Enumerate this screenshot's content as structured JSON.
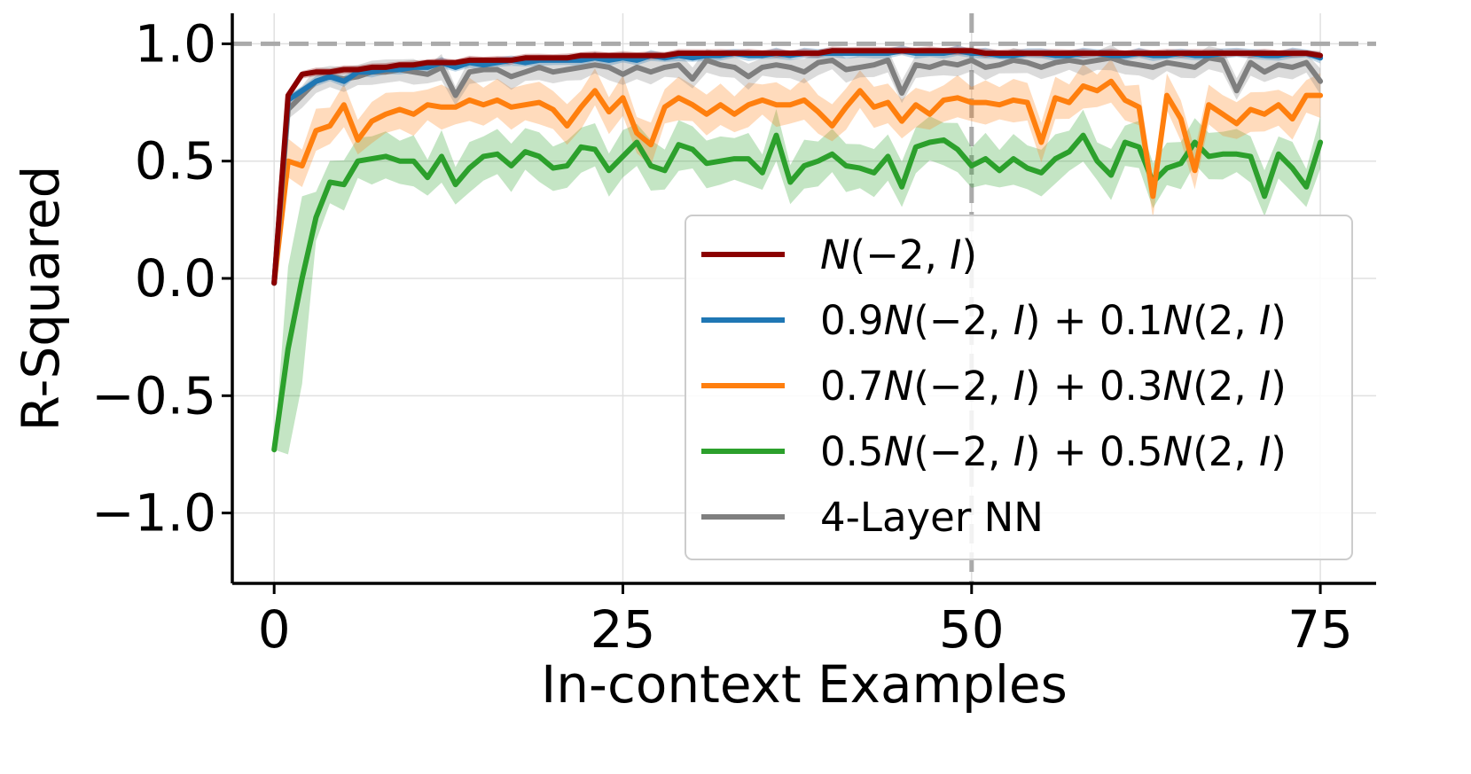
{
  "chart_data": {
    "type": "line",
    "title": "",
    "xlabel": "In-context Examples",
    "ylabel": "R-Squared",
    "xlim": [
      -3,
      79
    ],
    "ylim": [
      -1.3,
      1.13
    ],
    "xticks": [
      0,
      25,
      50,
      75
    ],
    "xtick_labels": [
      "0",
      "25",
      "50",
      "75"
    ],
    "yticks": [
      -1.0,
      -0.5,
      0.0,
      0.5,
      1.0
    ],
    "ytick_labels": [
      "−1.0",
      "−0.5",
      "0.0",
      "0.5",
      "1.0"
    ],
    "grid": true,
    "legend_position": "lower-right",
    "reference_lines": {
      "horizontal_y": 1.0,
      "vertical_x": 50,
      "color": "#aaaaaa"
    },
    "x_start": 0,
    "series": [
      {
        "name": "N(−2, I)",
        "label_parts": [
          [
            "N",
            "i"
          ],
          [
            "(−2, ",
            "n"
          ],
          [
            "I",
            "i"
          ],
          [
            ")",
            "n"
          ]
        ],
        "color": "#8b0000",
        "band": 0.012,
        "values": [
          -0.02,
          0.78,
          0.87,
          0.88,
          0.88,
          0.89,
          0.89,
          0.9,
          0.9,
          0.91,
          0.91,
          0.92,
          0.92,
          0.92,
          0.93,
          0.93,
          0.93,
          0.93,
          0.94,
          0.94,
          0.94,
          0.94,
          0.95,
          0.95,
          0.95,
          0.95,
          0.95,
          0.95,
          0.95,
          0.96,
          0.96,
          0.96,
          0.96,
          0.96,
          0.96,
          0.96,
          0.96,
          0.96,
          0.96,
          0.96,
          0.97,
          0.97,
          0.97,
          0.97,
          0.97,
          0.97,
          0.97,
          0.97,
          0.97,
          0.97,
          0.97,
          0.96,
          0.96,
          0.96,
          0.96,
          0.96,
          0.96,
          0.96,
          0.96,
          0.96,
          0.96,
          0.96,
          0.96,
          0.96,
          0.96,
          0.96,
          0.96,
          0.96,
          0.96,
          0.96,
          0.96,
          0.96,
          0.96,
          0.96,
          0.96,
          0.95
        ]
      },
      {
        "name": "0.9N(−2, I) + 0.1N(2, I)",
        "label_parts": [
          [
            "0.9",
            "n"
          ],
          [
            "N",
            "i"
          ],
          [
            "(−2, ",
            "n"
          ],
          [
            "I",
            "i"
          ],
          [
            ") + 0.1",
            "n"
          ],
          [
            "N",
            "i"
          ],
          [
            "(2, ",
            "n"
          ],
          [
            "I",
            "i"
          ],
          [
            ")",
            "n"
          ]
        ],
        "color": "#1f77b4",
        "band": 0.015,
        "values": [
          -0.02,
          0.76,
          0.8,
          0.84,
          0.86,
          0.84,
          0.88,
          0.88,
          0.89,
          0.89,
          0.9,
          0.9,
          0.92,
          0.9,
          0.92,
          0.91,
          0.92,
          0.93,
          0.92,
          0.93,
          0.93,
          0.93,
          0.93,
          0.94,
          0.93,
          0.94,
          0.93,
          0.95,
          0.94,
          0.95,
          0.94,
          0.95,
          0.95,
          0.96,
          0.95,
          0.95,
          0.96,
          0.95,
          0.96,
          0.96,
          0.96,
          0.96,
          0.96,
          0.96,
          0.96,
          0.97,
          0.96,
          0.96,
          0.96,
          0.97,
          0.96,
          0.96,
          0.95,
          0.95,
          0.96,
          0.96,
          0.95,
          0.95,
          0.96,
          0.96,
          0.95,
          0.95,
          0.96,
          0.95,
          0.95,
          0.96,
          0.95,
          0.95,
          0.96,
          0.96,
          0.96,
          0.95,
          0.95,
          0.96,
          0.96,
          0.94
        ]
      },
      {
        "name": "0.7N(−2, I) + 0.3N(2, I)",
        "label_parts": [
          [
            "0.7",
            "n"
          ],
          [
            "N",
            "i"
          ],
          [
            "(−2, ",
            "n"
          ],
          [
            "I",
            "i"
          ],
          [
            ") + 0.3",
            "n"
          ],
          [
            "N",
            "i"
          ],
          [
            "(2, ",
            "n"
          ],
          [
            "I",
            "i"
          ],
          [
            ")",
            "n"
          ]
        ],
        "color": "#ff7f0e",
        "band": 0.06,
        "values": [
          -0.02,
          0.5,
          0.48,
          0.63,
          0.65,
          0.74,
          0.59,
          0.67,
          0.7,
          0.72,
          0.7,
          0.74,
          0.73,
          0.73,
          0.76,
          0.74,
          0.76,
          0.73,
          0.74,
          0.75,
          0.72,
          0.65,
          0.73,
          0.8,
          0.71,
          0.77,
          0.62,
          0.57,
          0.73,
          0.77,
          0.74,
          0.7,
          0.74,
          0.7,
          0.74,
          0.76,
          0.74,
          0.74,
          0.76,
          0.71,
          0.65,
          0.73,
          0.8,
          0.73,
          0.75,
          0.67,
          0.74,
          0.7,
          0.76,
          0.77,
          0.75,
          0.75,
          0.74,
          0.76,
          0.75,
          0.58,
          0.77,
          0.75,
          0.82,
          0.8,
          0.84,
          0.76,
          0.73,
          0.35,
          0.78,
          0.68,
          0.46,
          0.74,
          0.7,
          0.66,
          0.72,
          0.7,
          0.74,
          0.68,
          0.78,
          0.78
        ]
      },
      {
        "name": "0.5N(−2, I) + 0.5N(2, I)",
        "label_parts": [
          [
            "0.5",
            "n"
          ],
          [
            "N",
            "i"
          ],
          [
            "(−2, ",
            "n"
          ],
          [
            "I",
            "i"
          ],
          [
            ") + 0.5",
            "n"
          ],
          [
            "N",
            "i"
          ],
          [
            "(2, ",
            "n"
          ],
          [
            "I",
            "i"
          ],
          [
            ")",
            "n"
          ]
        ],
        "color": "#2ca02c",
        "band": 0.07,
        "values": [
          -0.73,
          -0.3,
          0.0,
          0.26,
          0.41,
          0.4,
          0.5,
          0.51,
          0.52,
          0.5,
          0.5,
          0.43,
          0.52,
          0.4,
          0.47,
          0.52,
          0.53,
          0.48,
          0.54,
          0.52,
          0.47,
          0.48,
          0.56,
          0.55,
          0.46,
          0.52,
          0.58,
          0.48,
          0.46,
          0.57,
          0.55,
          0.49,
          0.5,
          0.51,
          0.51,
          0.45,
          0.61,
          0.41,
          0.48,
          0.5,
          0.53,
          0.48,
          0.47,
          0.45,
          0.52,
          0.39,
          0.56,
          0.58,
          0.59,
          0.55,
          0.48,
          0.51,
          0.46,
          0.51,
          0.47,
          0.45,
          0.51,
          0.54,
          0.61,
          0.5,
          0.44,
          0.58,
          0.56,
          0.41,
          0.47,
          0.49,
          0.58,
          0.52,
          0.53,
          0.53,
          0.52,
          0.35,
          0.53,
          0.47,
          0.39,
          0.58
        ]
      },
      {
        "name": "4-Layer NN",
        "label_parts": [
          [
            "4-Layer NN",
            "n"
          ]
        ],
        "color": "#7f7f7f",
        "band": 0.035,
        "values": [
          -0.02,
          0.72,
          0.78,
          0.84,
          0.86,
          0.85,
          0.86,
          0.88,
          0.88,
          0.89,
          0.88,
          0.87,
          0.9,
          0.78,
          0.88,
          0.89,
          0.89,
          0.86,
          0.88,
          0.9,
          0.88,
          0.89,
          0.9,
          0.91,
          0.9,
          0.87,
          0.9,
          0.88,
          0.9,
          0.91,
          0.85,
          0.93,
          0.91,
          0.9,
          0.86,
          0.9,
          0.91,
          0.9,
          0.88,
          0.92,
          0.93,
          0.89,
          0.9,
          0.91,
          0.93,
          0.79,
          0.91,
          0.9,
          0.92,
          0.91,
          0.93,
          0.9,
          0.91,
          0.93,
          0.92,
          0.9,
          0.92,
          0.93,
          0.92,
          0.93,
          0.94,
          0.92,
          0.91,
          0.9,
          0.92,
          0.91,
          0.9,
          0.94,
          0.93,
          0.8,
          0.92,
          0.88,
          0.91,
          0.9,
          0.92,
          0.84
        ]
      }
    ]
  }
}
